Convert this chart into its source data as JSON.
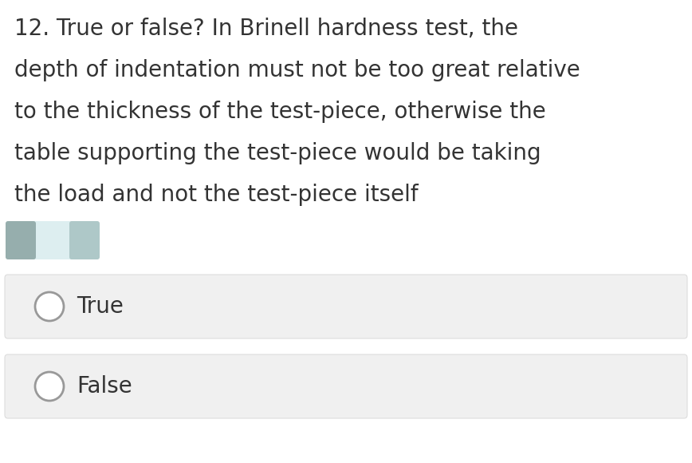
{
  "background_color": "#ffffff",
  "question_lines": [
    "12. True or false? In Brinell hardness test, the",
    "depth of indentation must not be too great relative",
    "to the thickness of the test-piece, otherwise the",
    "table supporting the test-piece would be taking",
    "the load and not the test-piece itself"
  ],
  "options": [
    "True",
    "False"
  ],
  "option_box_color": "#f0f0f0",
  "option_box_border": "#dddddd",
  "text_color": "#333333",
  "font_size": 20,
  "option_font_size": 20,
  "circle_edge_color": "#999999",
  "icon_left_color": "#96aead",
  "icon_mid_color": "#ddeef0",
  "icon_right_color": "#aec8c8"
}
